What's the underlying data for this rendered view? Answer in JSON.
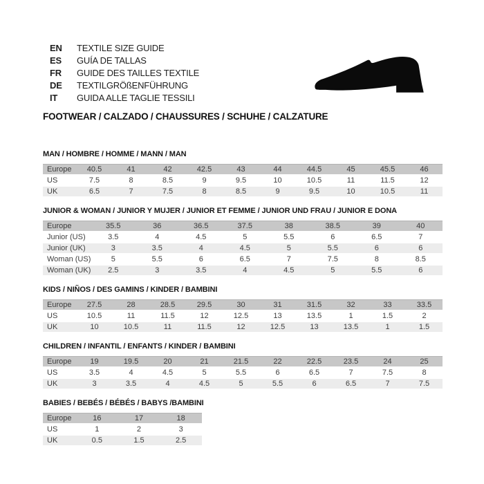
{
  "header": {
    "languages": [
      {
        "code": "EN",
        "label": "TEXTILE SIZE GUIDE"
      },
      {
        "code": "ES",
        "label": "GUÍA DE TALLAS"
      },
      {
        "code": "FR",
        "label": "GUIDE DES TAILLES TEXTILE"
      },
      {
        "code": "DE",
        "label": "TEXTILGRÖßENFÜHRUNG"
      },
      {
        "code": "IT",
        "label": "GUIDA ALLE TAGLIE TESSILI"
      }
    ],
    "category_line": "FOOTWEAR / CALZADO / CHAUSSURES / SCHUHE / CALZATURE",
    "shoe_icon": "shoe-silhouette"
  },
  "colors": {
    "header_row": "#c7c7c7",
    "alt_row": "#ececec",
    "text": "#3d3d3d",
    "heading": "#161616",
    "shoe": "#0b0b0b"
  },
  "sections": [
    {
      "title": "MAN / HOMBRE / HOMME / MANN / MAN",
      "label_col_width": 48,
      "narrow": false,
      "rows": [
        {
          "label": "Europe",
          "values": [
            "40.5",
            "41",
            "42",
            "42.5",
            "43",
            "44",
            "44.5",
            "45",
            "45.5",
            "46"
          ]
        },
        {
          "label": "US",
          "values": [
            "7.5",
            "8",
            "8.5",
            "9",
            "9.5",
            "10",
            "10.5",
            "11",
            "11.5",
            "12"
          ]
        },
        {
          "label": "UK",
          "values": [
            "6.5",
            "7",
            "7.5",
            "8",
            "8.5",
            "9",
            "9.5",
            "10",
            "10.5",
            "11"
          ]
        }
      ]
    },
    {
      "title": "JUNIOR & WOMAN / JUNIOR Y MUJER / JUNIOR ET FEMME / JUNIOR UND FRAU / JUNIOR E DONA",
      "label_col_width": 70,
      "narrow": false,
      "rows": [
        {
          "label": "Europe",
          "values": [
            "35.5",
            "36",
            "36.5",
            "37.5",
            "38",
            "38.5",
            "39",
            "40"
          ]
        },
        {
          "label": "Junior (US)",
          "values": [
            "3.5",
            "4",
            "4.5",
            "5",
            "5.5",
            "6",
            "6.5",
            "7"
          ]
        },
        {
          "label": "Junior (UK)",
          "values": [
            "3",
            "3.5",
            "4",
            "4.5",
            "5",
            "5.5",
            "6",
            "6"
          ]
        },
        {
          "label": "Woman (US)",
          "values": [
            "5",
            "5.5",
            "6",
            "6.5",
            "7",
            "7.5",
            "8",
            "8.5"
          ]
        },
        {
          "label": "Woman (UK)",
          "values": [
            "2.5",
            "3",
            "3.5",
            "4",
            "4.5",
            "5",
            "5.5",
            "6"
          ]
        }
      ]
    },
    {
      "title": "KIDS / NIÑOS / DES GAMINS / KINDER / BAMBINI",
      "label_col_width": 48,
      "narrow": false,
      "rows": [
        {
          "label": "Europe",
          "values": [
            "27.5",
            "28",
            "28.5",
            "29.5",
            "30",
            "31",
            "31.5",
            "32",
            "33",
            "33.5"
          ]
        },
        {
          "label": "US",
          "values": [
            "10.5",
            "11",
            "11.5",
            "12",
            "12.5",
            "13",
            "13.5",
            "1",
            "1.5",
            "2"
          ]
        },
        {
          "label": "UK",
          "values": [
            "10",
            "10.5",
            "11",
            "11.5",
            "12",
            "12.5",
            "13",
            "13.5",
            "1",
            "1.5"
          ]
        }
      ]
    },
    {
      "title": "CHILDREN / INFANTIL / ENFANTS / KINDER / BAMBINI",
      "label_col_width": 48,
      "narrow": false,
      "rows": [
        {
          "label": "Europe",
          "values": [
            "19",
            "19.5",
            "20",
            "21",
            "21.5",
            "22",
            "22.5",
            "23.5",
            "24",
            "25"
          ]
        },
        {
          "label": "US",
          "values": [
            "3.5",
            "4",
            "4.5",
            "5",
            "5.5",
            "6",
            "6.5",
            "7",
            "7.5",
            "8"
          ]
        },
        {
          "label": "UK",
          "values": [
            "3",
            "3.5",
            "4",
            "4.5",
            "5",
            "5.5",
            "6",
            "6.5",
            "7",
            "7.5"
          ]
        }
      ]
    },
    {
      "title": "BABIES / BEBÉS / BÉBÉS / BABYS /BAMBINI",
      "label_col_width": 48,
      "narrow": true,
      "rows": [
        {
          "label": "Europe",
          "values": [
            "16",
            "17",
            "18"
          ]
        },
        {
          "label": "US",
          "values": [
            "1",
            "2",
            "3"
          ]
        },
        {
          "label": "UK",
          "values": [
            "0.5",
            "1.5",
            "2.5"
          ]
        }
      ]
    }
  ]
}
